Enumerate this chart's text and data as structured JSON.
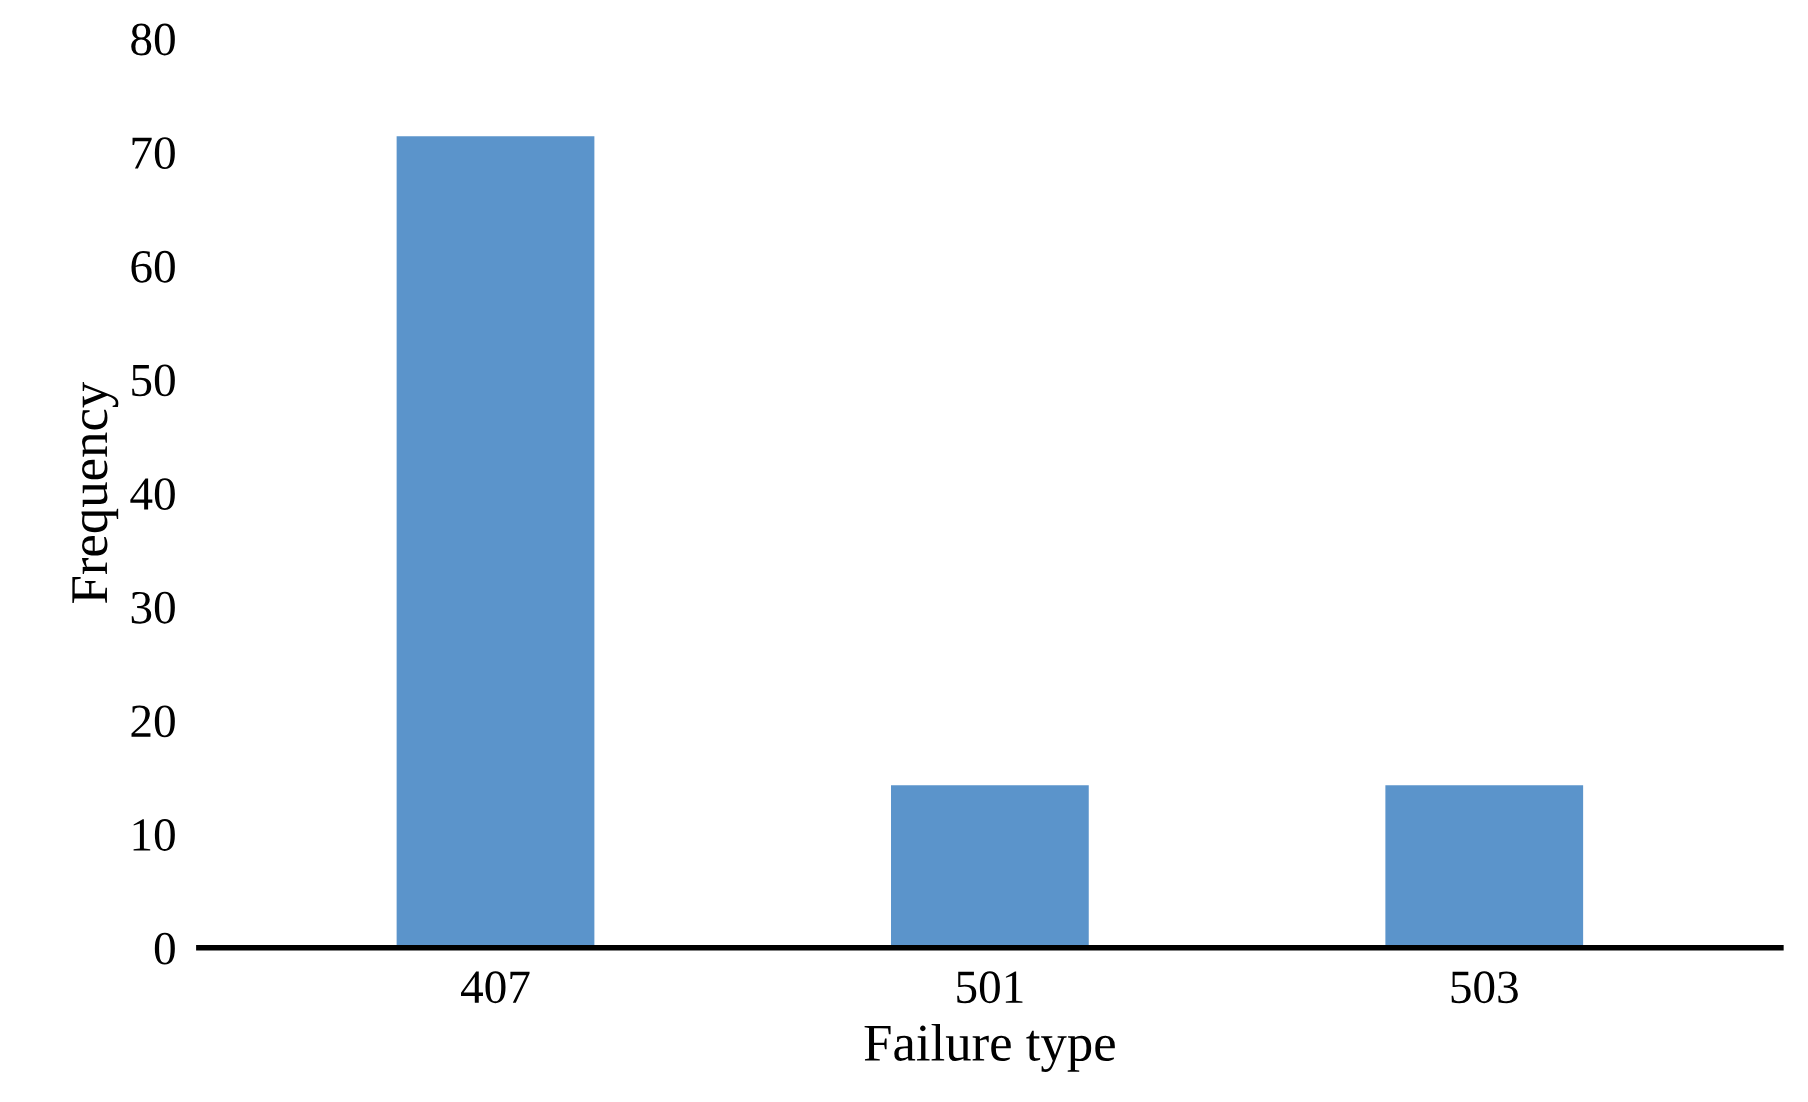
{
  "chart_data": {
    "type": "bar",
    "xlabel": "Failure type",
    "ylabel": "Frequency",
    "categories": [
      "407",
      "501",
      "503"
    ],
    "values": [
      71.4,
      14.3,
      14.3
    ],
    "color": "#5b94cb",
    "ylim": [
      0,
      80
    ],
    "yticks": [
      0,
      10,
      20,
      30,
      40,
      50,
      60,
      70,
      80
    ],
    "grid": false
  }
}
